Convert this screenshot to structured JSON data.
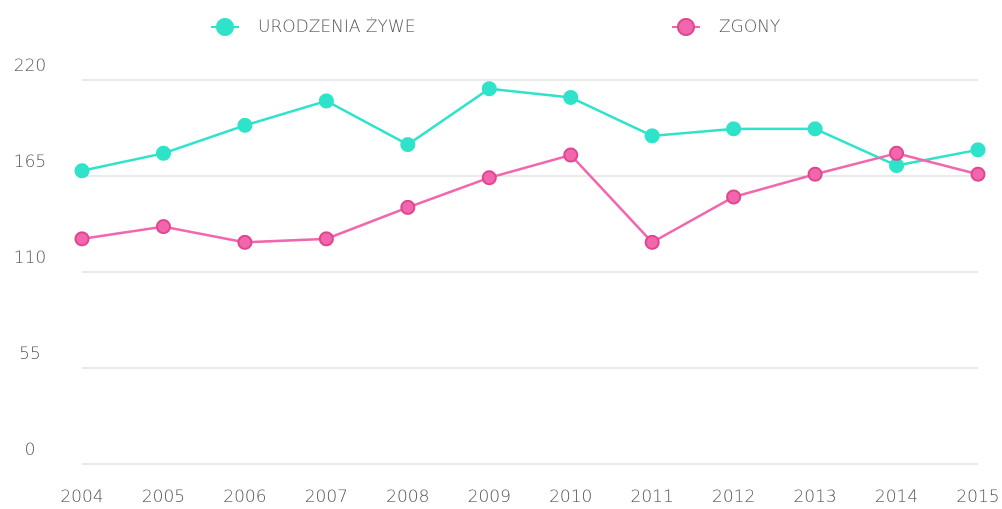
{
  "chart_data": {
    "type": "line",
    "categories": [
      "2004",
      "2005",
      "2006",
      "2007",
      "2008",
      "2009",
      "2010",
      "2011",
      "2012",
      "2013",
      "2014",
      "2015"
    ],
    "series": [
      {
        "name": "URODZENIA ŻYWE",
        "color": "#2ee3c9",
        "values": [
          168,
          178,
          194,
          208,
          183,
          215,
          210,
          188,
          192,
          192,
          171,
          180
        ]
      },
      {
        "name": "ZGONY",
        "color": "#f266ad",
        "values": [
          129,
          136,
          127,
          129,
          147,
          164,
          177,
          127,
          153,
          166,
          178,
          166
        ]
      }
    ],
    "ylim": [
      0,
      220
    ],
    "yticks": [
      0,
      55,
      110,
      165,
      220
    ],
    "grid": true,
    "legend": "top"
  }
}
